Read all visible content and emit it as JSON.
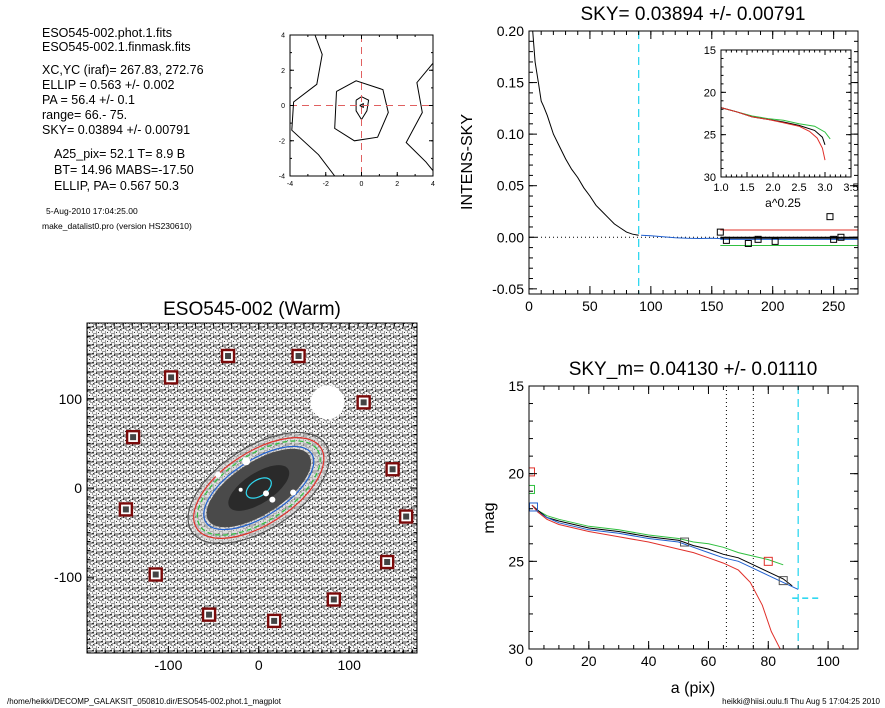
{
  "info": {
    "lines_a": [
      "ESO545-002.phot.1.fits",
      "ESO545-002.1.finmask.fits"
    ],
    "lines_b": [
      "XC,YC (iraf)=   267.83, 272.76",
      "ELLIP = 0.563 +/- 0.002",
      "PA    =  56.4 +/-   0.1",
      "range=   66.-   75.",
      "SKY= 0.03894 +/- 0.00791"
    ],
    "lines_c": [
      "A25_pix= 52.1   T= 8.9  B",
      "BT=  14.96   MABS=-17.50",
      "ELLIP, PA= 0.567    50.3"
    ],
    "lines_d": [
      "5-Aug-2010 17:04:25.00",
      "make_datalist0.pro (version HS230610)"
    ]
  },
  "footer": {
    "left": "/home/heikki/DECOMP_GALAKSIT_050810.dir/ESO545-002.phot.1_magplot",
    "right": "heikki@hiisi.oulu.fi  Thu Aug  5 17:04:25 2010"
  },
  "colors": {
    "red": "#e0302a",
    "green": "#30c040",
    "blue": "#2060d0",
    "cyan": "#30d8f0",
    "black": "#000000",
    "grey": "#555555",
    "dark_red": "#7a0a0a"
  },
  "chart_data": [
    {
      "id": "contour",
      "type": "line",
      "xlim": [
        -4,
        4
      ],
      "ylim": [
        -4,
        4
      ],
      "xticks": [
        "-4",
        "-2",
        "0",
        "2",
        "4"
      ],
      "yticks": [
        "-4",
        "-2",
        "0",
        "2",
        "4"
      ],
      "contours": [
        [
          [
            -2.6,
            4.0
          ],
          [
            -2.2,
            2.9
          ],
          [
            -2.5,
            1.2
          ],
          [
            -3.8,
            0.2
          ],
          [
            -3.9,
            -1.4
          ],
          [
            -2.4,
            -2.8
          ],
          [
            -1.5,
            -4.0
          ]
        ],
        [
          [
            -1.4,
            0.8
          ],
          [
            -0.3,
            1.4
          ],
          [
            1.2,
            0.9
          ],
          [
            1.5,
            -0.4
          ],
          [
            0.9,
            -1.8
          ],
          [
            -0.4,
            -2.0
          ],
          [
            -1.5,
            -1.3
          ],
          [
            -1.4,
            0.8
          ]
        ],
        [
          [
            -0.3,
            0.3
          ],
          [
            0.0,
            0.5
          ],
          [
            0.4,
            0.3
          ],
          [
            0.3,
            -0.3
          ],
          [
            0.0,
            -0.8
          ],
          [
            -0.3,
            -0.3
          ],
          [
            -0.3,
            0.3
          ]
        ],
        [
          [
            -0.1,
            0.0
          ],
          [
            0.1,
            0.1
          ],
          [
            0.1,
            -0.1
          ],
          [
            -0.1,
            0.0
          ]
        ],
        [
          [
            4.0,
            2.4
          ],
          [
            3.1,
            1.3
          ],
          [
            3.4,
            -0.4
          ],
          [
            2.5,
            -2.1
          ],
          [
            3.6,
            -3.2
          ],
          [
            4.0,
            -3.7
          ]
        ]
      ]
    },
    {
      "id": "sky",
      "type": "line",
      "title": "SKY= 0.03894 +/- 0.00791",
      "ylabel": "INTENS-SKY",
      "xlim": [
        0,
        270
      ],
      "ylim": [
        -0.055,
        0.2
      ],
      "xticks": [
        "0",
        "50",
        "100",
        "150",
        "200",
        "250"
      ],
      "yticks": [
        "-0.05",
        "0.00",
        "0.05",
        "0.10",
        "0.15",
        "0.20"
      ],
      "vline_x": 90,
      "profile_x": [
        3,
        5,
        8,
        10,
        12,
        15,
        20,
        25,
        30,
        35,
        40,
        45,
        50,
        55,
        60,
        65,
        70,
        75,
        80,
        85,
        90
      ],
      "profile_y": [
        0.2,
        0.17,
        0.148,
        0.132,
        0.127,
        0.118,
        0.1,
        0.088,
        0.076,
        0.066,
        0.058,
        0.048,
        0.04,
        0.031,
        0.025,
        0.019,
        0.013,
        0.009,
        0.005,
        0.003,
        0.002
      ],
      "tail_x": [
        92,
        100,
        110,
        120,
        130,
        140,
        150,
        160
      ],
      "tail_y": [
        0.002,
        0.0015,
        0.0005,
        -0.0005,
        -0.001,
        -0.0012,
        -0.001,
        -0.0015
      ],
      "points": [
        [
          157,
          0.005
        ],
        [
          162,
          -0.003
        ],
        [
          180,
          -0.006
        ],
        [
          188,
          -0.002
        ],
        [
          202,
          -0.004
        ],
        [
          247,
          0.02
        ],
        [
          250,
          -0.002
        ],
        [
          256,
          0.0
        ]
      ],
      "hlines": [
        {
          "color": "red",
          "y": 0.007,
          "x0": 157
        },
        {
          "color": "black",
          "y": -0.0005,
          "x0": 157
        },
        {
          "color": "blue",
          "y": -0.002,
          "x0": 157
        },
        {
          "color": "green",
          "y": -0.008,
          "x0": 157
        }
      ]
    },
    {
      "id": "sky_inset",
      "type": "line",
      "xlabel": "a^0.25",
      "xlim": [
        1.0,
        3.5
      ],
      "ylim": [
        15,
        30
      ],
      "xticks": [
        "1.0",
        "1.5",
        "2.0",
        "2.5",
        "3.0",
        "3.5"
      ],
      "yticks": [
        "15",
        "20",
        "25",
        "30"
      ],
      "series": [
        {
          "color": "green",
          "x": [
            1.0,
            1.3,
            1.6,
            1.9,
            2.2,
            2.5,
            2.8,
            3.0,
            3.1
          ],
          "y": [
            21.8,
            22.3,
            22.8,
            23.1,
            23.3,
            23.7,
            24.0,
            24.7,
            25.5
          ]
        },
        {
          "color": "black",
          "x": [
            1.0,
            1.3,
            1.6,
            1.9,
            2.2,
            2.5,
            2.8,
            2.95,
            3.0
          ],
          "y": [
            21.8,
            22.3,
            22.9,
            23.2,
            23.5,
            23.9,
            24.5,
            25.3,
            26.2
          ]
        },
        {
          "color": "red",
          "x": [
            1.0,
            1.3,
            1.6,
            1.9,
            2.2,
            2.5,
            2.7,
            2.85,
            2.95,
            3.0
          ],
          "y": [
            21.8,
            22.3,
            22.9,
            23.2,
            23.6,
            24.0,
            24.6,
            25.4,
            26.6,
            28.0
          ]
        }
      ]
    },
    {
      "id": "image",
      "type": "scatter",
      "title": "ESO545-002 (Warm)",
      "xlim": [
        -190,
        175
      ],
      "ylim": [
        -185,
        185
      ],
      "xticks": [
        "-100",
        "0",
        "100"
      ],
      "yticks": [
        "-100",
        "0",
        "100"
      ],
      "masks": [
        [
          -34,
          148
        ],
        [
          44,
          148
        ],
        [
          -97,
          124
        ],
        [
          116,
          96
        ],
        [
          -139,
          57
        ],
        [
          148,
          21
        ],
        [
          -147,
          -24
        ],
        [
          163,
          -32
        ],
        [
          142,
          -83
        ],
        [
          -114,
          -97
        ],
        [
          83,
          -125
        ],
        [
          -55,
          -142
        ],
        [
          17,
          -149
        ]
      ],
      "ellipses": [
        {
          "color": "grey",
          "rx": 80,
          "ry": 41
        },
        {
          "color": "red",
          "rx": 74,
          "ry": 36
        },
        {
          "color": "green",
          "rx": 70,
          "ry": 33
        },
        {
          "color": "blue",
          "rx": 63,
          "ry": 28
        },
        {
          "color": "cyan",
          "rx": 14,
          "ry": 8
        }
      ],
      "center": [
        0,
        0
      ],
      "pa_deg": 33
    },
    {
      "id": "mag",
      "type": "line",
      "title": "SKY_m=  0.04130 +/- 0.01110",
      "xlabel": "a (pix)",
      "ylabel": "mag",
      "xlim": [
        0,
        110
      ],
      "ylim": [
        15,
        30
      ],
      "xticks": [
        "0",
        "20",
        "40",
        "60",
        "80",
        "100"
      ],
      "yticks": [
        "15",
        "20",
        "25",
        "30"
      ],
      "dotted_x": [
        66,
        75
      ],
      "dashed_x": 90,
      "series": [
        {
          "color": "green",
          "x": [
            1,
            3,
            6,
            10,
            15,
            20,
            30,
            40,
            50,
            55,
            60,
            65,
            70,
            75,
            80,
            85
          ],
          "y": [
            21.8,
            22.1,
            22.4,
            22.6,
            22.8,
            23.0,
            23.2,
            23.5,
            23.7,
            23.9,
            24.0,
            24.2,
            24.5,
            24.7,
            24.9,
            25.2
          ]
        },
        {
          "color": "black",
          "x": [
            1,
            3,
            6,
            10,
            15,
            20,
            30,
            40,
            50,
            55,
            60,
            65,
            70,
            75,
            80,
            85,
            88
          ],
          "y": [
            21.8,
            22.1,
            22.5,
            22.7,
            22.9,
            23.1,
            23.3,
            23.6,
            23.8,
            24.1,
            24.3,
            24.6,
            24.8,
            25.2,
            25.6,
            26.0,
            26.4
          ]
        },
        {
          "color": "blue",
          "x": [
            1,
            3,
            6,
            10,
            15,
            20,
            30,
            40,
            50,
            55,
            60,
            65,
            70,
            75,
            80,
            85,
            90
          ],
          "y": [
            21.8,
            22.2,
            22.5,
            22.8,
            23.0,
            23.2,
            23.4,
            23.7,
            23.9,
            24.2,
            24.5,
            24.8,
            25.0,
            25.4,
            25.8,
            26.2,
            26.6
          ]
        },
        {
          "color": "red",
          "x": [
            1,
            3,
            6,
            10,
            15,
            20,
            30,
            40,
            50,
            55,
            60,
            65,
            70,
            74,
            78,
            81,
            84
          ],
          "y": [
            21.8,
            22.2,
            22.6,
            22.9,
            23.1,
            23.3,
            23.6,
            23.9,
            24.3,
            24.5,
            24.8,
            25.1,
            25.5,
            26.2,
            27.5,
            29.0,
            30.0
          ]
        }
      ],
      "boxes": [
        {
          "color": "red",
          "x": 0.5,
          "y": 19.9
        },
        {
          "color": "green",
          "x": 0.5,
          "y": 20.9
        },
        {
          "color": "blue",
          "x": 1.5,
          "y": 21.9
        },
        {
          "color": "grey",
          "x": 52,
          "y": 23.9
        },
        {
          "color": "red",
          "x": 80,
          "y": 25.0
        },
        {
          "color": "grey",
          "x": 85,
          "y": 26.1
        }
      ],
      "sky_segment": {
        "x0": 88,
        "x1": 97,
        "y": 27.1
      }
    }
  ]
}
